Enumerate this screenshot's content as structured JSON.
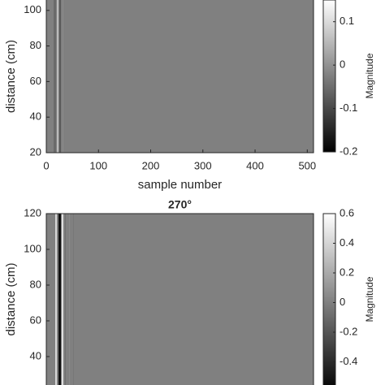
{
  "chart_data": [
    {
      "type": "heatmap",
      "xlabel": "sample number",
      "ylabel": "distance (cm)",
      "colorbar_label": "Magnitude",
      "colormap": "gray",
      "xlim": [
        0,
        512
      ],
      "xticks": [
        0,
        100,
        200,
        300,
        400,
        500
      ],
      "ylim": [
        20,
        120
      ],
      "yticks": [
        20,
        40,
        60,
        80,
        100
      ],
      "clim": [
        -0.2,
        0.15
      ],
      "cticks": [
        -0.2,
        -0.1,
        0,
        0.1
      ]
    },
    {
      "type": "heatmap",
      "title": "270°",
      "ylabel": "distance (cm)",
      "colorbar_label": "Magnitude",
      "colormap": "gray",
      "xlim": [
        0,
        512
      ],
      "ylim": [
        20,
        120
      ],
      "yticks": [
        40,
        60,
        80,
        100,
        120
      ],
      "clim": [
        -0.6,
        0.6
      ],
      "cticks": [
        -0.4,
        -0.2,
        0,
        0.2,
        0.4,
        0.6
      ]
    }
  ]
}
